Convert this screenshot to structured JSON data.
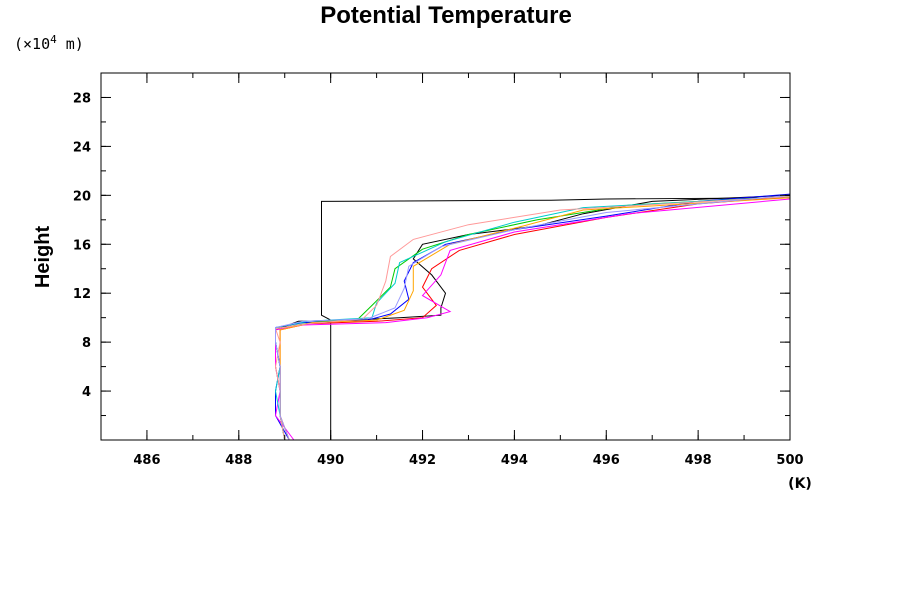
{
  "chart_data": {
    "type": "line",
    "title": "Potential Temperature",
    "ylabel": "Height",
    "y_unit_prefix": "(×10",
    "y_unit_exponent": "4",
    "y_unit_suffix": " m)",
    "x_unit": "(K)",
    "xlim": [
      485,
      500
    ],
    "ylim": [
      0,
      30
    ],
    "x_ticks": [
      "486",
      "488",
      "490",
      "492",
      "494",
      "496",
      "498",
      "500"
    ],
    "y_ticks": [
      "4",
      "8",
      "12",
      "16",
      "20",
      "24",
      "28"
    ],
    "grid": false,
    "series": [
      {
        "color": "#000000",
        "points": [
          [
            490.0,
            0
          ],
          [
            490.0,
            9.8
          ],
          [
            489.8,
            10.2
          ],
          [
            489.8,
            13
          ],
          [
            489.8,
            16
          ],
          [
            489.8,
            18
          ],
          [
            489.8,
            19.5
          ],
          [
            494.8,
            19.6
          ],
          [
            496,
            19.7
          ],
          [
            500,
            19.8
          ]
        ]
      },
      {
        "color": "#000000",
        "points": [
          [
            489.0,
            0
          ],
          [
            488.9,
            2
          ],
          [
            488.9,
            4
          ],
          [
            488.9,
            6
          ],
          [
            488.8,
            8
          ],
          [
            488.8,
            9.0
          ],
          [
            489.3,
            9.7
          ],
          [
            490.5,
            9.8
          ],
          [
            491.5,
            10.0
          ],
          [
            492.4,
            10.2
          ],
          [
            492.4,
            10.8
          ],
          [
            492.5,
            12
          ],
          [
            492.2,
            13.5
          ],
          [
            491.8,
            14.8
          ],
          [
            492.0,
            16.0
          ],
          [
            493.0,
            16.8
          ],
          [
            494.5,
            17.5
          ],
          [
            495.5,
            18.5
          ],
          [
            497,
            19.5
          ],
          [
            500,
            20.0
          ]
        ]
      },
      {
        "color": "#0000ff",
        "points": [
          [
            489.1,
            0
          ],
          [
            488.8,
            2
          ],
          [
            488.8,
            4
          ],
          [
            488.9,
            6
          ],
          [
            488.8,
            8
          ],
          [
            488.8,
            9.2
          ],
          [
            489.4,
            9.6
          ],
          [
            490.8,
            9.8
          ],
          [
            491.3,
            10.3
          ],
          [
            491.7,
            11.5
          ],
          [
            491.6,
            13.0
          ],
          [
            491.8,
            14.5
          ],
          [
            492.5,
            16.0
          ],
          [
            494.0,
            17.2
          ],
          [
            496.0,
            18.3
          ],
          [
            498,
            19.5
          ],
          [
            500,
            20.1
          ]
        ]
      },
      {
        "color": "#ff0000",
        "points": [
          [
            489.1,
            0
          ],
          [
            488.9,
            2
          ],
          [
            488.9,
            4
          ],
          [
            488.9,
            6
          ],
          [
            488.9,
            8
          ],
          [
            488.9,
            9.0
          ],
          [
            489.5,
            9.5
          ],
          [
            491.0,
            9.7
          ],
          [
            492.0,
            10.0
          ],
          [
            492.3,
            11.0
          ],
          [
            492.0,
            12.5
          ],
          [
            492.2,
            14.0
          ],
          [
            492.8,
            15.5
          ],
          [
            494.0,
            16.8
          ],
          [
            496.0,
            18.2
          ],
          [
            498,
            19.3
          ],
          [
            500,
            19.9
          ]
        ]
      },
      {
        "color": "#00cc00",
        "points": [
          [
            489.0,
            0
          ],
          [
            488.9,
            2
          ],
          [
            488.9,
            4
          ],
          [
            488.8,
            6
          ],
          [
            488.8,
            8
          ],
          [
            488.8,
            9.1
          ],
          [
            489.6,
            9.6
          ],
          [
            490.6,
            9.9
          ],
          [
            490.9,
            11.0
          ],
          [
            491.3,
            12.5
          ],
          [
            491.4,
            14.0
          ],
          [
            492.0,
            15.6
          ],
          [
            493.0,
            16.8
          ],
          [
            494.5,
            18.0
          ],
          [
            496.5,
            19.2
          ],
          [
            500,
            19.9
          ]
        ]
      },
      {
        "color": "#ff00ff",
        "points": [
          [
            489.2,
            0
          ],
          [
            488.8,
            2
          ],
          [
            488.9,
            4
          ],
          [
            488.8,
            6
          ],
          [
            488.8,
            8
          ],
          [
            488.8,
            9.0
          ],
          [
            489.4,
            9.4
          ],
          [
            491.2,
            9.6
          ],
          [
            492.1,
            10.0
          ],
          [
            492.6,
            10.5
          ],
          [
            492.0,
            11.8
          ],
          [
            492.4,
            13.5
          ],
          [
            492.6,
            15.5
          ],
          [
            494.0,
            17.0
          ],
          [
            496.5,
            18.5
          ],
          [
            500,
            19.7
          ]
        ]
      },
      {
        "color": "#00cccc",
        "points": [
          [
            489.0,
            0
          ],
          [
            488.9,
            2
          ],
          [
            488.8,
            4
          ],
          [
            488.9,
            6
          ],
          [
            488.8,
            8
          ],
          [
            488.8,
            9.2
          ],
          [
            489.5,
            9.7
          ],
          [
            490.9,
            10.0
          ],
          [
            491.0,
            11.2
          ],
          [
            491.4,
            12.8
          ],
          [
            491.5,
            14.5
          ],
          [
            492.5,
            16.2
          ],
          [
            494.0,
            17.8
          ],
          [
            495.5,
            19.0
          ],
          [
            500,
            19.9
          ]
        ]
      },
      {
        "color": "#ffa500",
        "points": [
          [
            489.1,
            0
          ],
          [
            488.9,
            2
          ],
          [
            488.9,
            4
          ],
          [
            488.9,
            6
          ],
          [
            488.9,
            8
          ],
          [
            488.9,
            9.0
          ],
          [
            489.6,
            9.6
          ],
          [
            491.0,
            9.8
          ],
          [
            491.6,
            10.6
          ],
          [
            491.8,
            12.2
          ],
          [
            491.8,
            14.2
          ],
          [
            492.6,
            16.0
          ],
          [
            494.2,
            17.5
          ],
          [
            495.5,
            18.8
          ],
          [
            500,
            19.8
          ]
        ]
      },
      {
        "color": "#ff9999",
        "points": [
          [
            489.0,
            0
          ],
          [
            488.9,
            2
          ],
          [
            488.9,
            4
          ],
          [
            488.8,
            6
          ],
          [
            488.9,
            8
          ],
          [
            488.8,
            9.1
          ],
          [
            489.5,
            9.5
          ],
          [
            490.7,
            9.9
          ],
          [
            491.0,
            11.0
          ],
          [
            491.2,
            13.0
          ],
          [
            491.3,
            15.0
          ],
          [
            491.8,
            16.4
          ],
          [
            493.0,
            17.6
          ],
          [
            495.0,
            18.8
          ],
          [
            500,
            19.9
          ]
        ]
      },
      {
        "color": "#9999ff",
        "points": [
          [
            489.1,
            0
          ],
          [
            488.9,
            2
          ],
          [
            488.9,
            4
          ],
          [
            488.9,
            6
          ],
          [
            488.8,
            8
          ],
          [
            488.8,
            9.2
          ],
          [
            489.4,
            9.7
          ],
          [
            490.8,
            9.9
          ],
          [
            491.4,
            10.8
          ],
          [
            491.6,
            12.4
          ],
          [
            491.7,
            14.2
          ],
          [
            492.4,
            15.8
          ],
          [
            494.0,
            17.2
          ],
          [
            496.0,
            18.6
          ],
          [
            500,
            20.0
          ]
        ]
      }
    ]
  }
}
